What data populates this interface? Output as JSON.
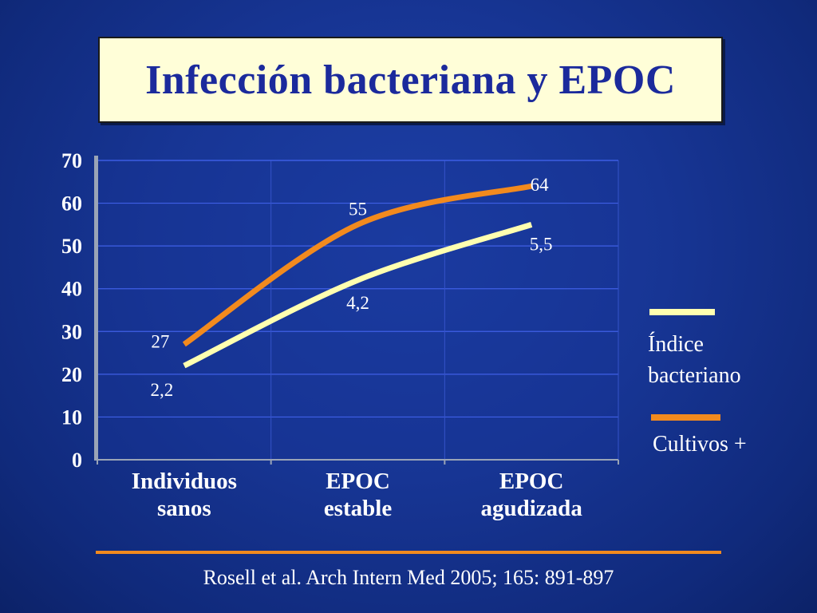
{
  "slide": {
    "title": "Infección bacteriana y EPOC",
    "source": "Rosell et al. Arch Intern Med 2005; 165: 891-897"
  },
  "colors": {
    "background": "#173594",
    "title_box": "#fffed8",
    "title_text": "#1b2a9c",
    "gridline": "#3f5fe6",
    "series_indice": "#ffffb0",
    "series_cultivos": "#f28a1e"
  },
  "legend": {
    "items": [
      {
        "label_line1": "Índice",
        "label_line2": "bacteriano",
        "color": "#ffffb0"
      },
      {
        "label_line1": "Cultivos +",
        "label_line2": "",
        "color": "#f28a1e"
      }
    ]
  },
  "chart_data": {
    "type": "line",
    "title": "",
    "xlabel": "",
    "ylabel": "",
    "ylim": [
      0,
      70
    ],
    "yticks": [
      "0",
      "10",
      "20",
      "30",
      "40",
      "50",
      "60",
      "70"
    ],
    "grid": true,
    "legend_position": "right",
    "categories": [
      "Individuos sanos",
      "EPOC estable",
      "EPOC agudizada"
    ],
    "category_lines": [
      [
        "Individuos",
        "sanos"
      ],
      [
        "EPOC",
        "estable"
      ],
      [
        "EPOC",
        "agudizada"
      ]
    ],
    "series": [
      {
        "name": "Índice bacteriano",
        "plotted_values": [
          22,
          42,
          55
        ],
        "data_labels": [
          "2,2",
          "4,2",
          "5,5"
        ],
        "color": "#ffffb0"
      },
      {
        "name": "Cultivos +",
        "plotted_values": [
          27,
          55,
          64
        ],
        "data_labels": [
          "27",
          "55",
          "64"
        ],
        "color": "#f28a1e"
      }
    ]
  }
}
